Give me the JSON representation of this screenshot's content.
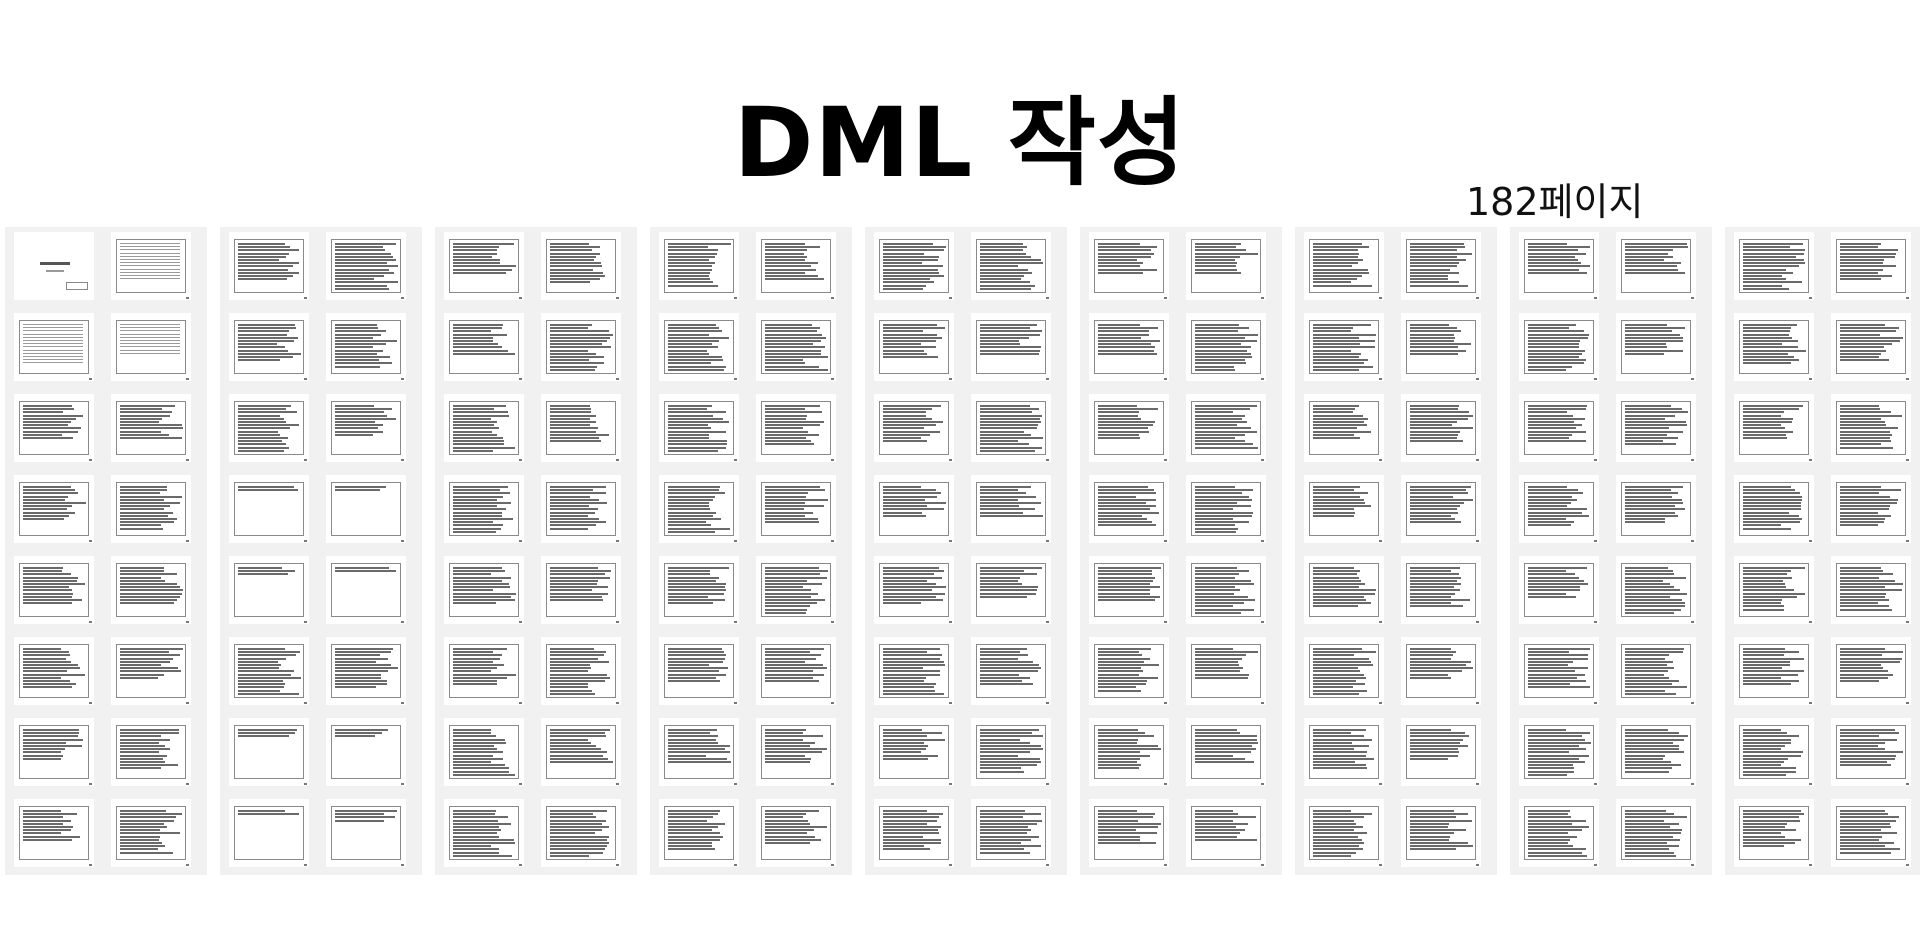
{
  "slide": {
    "title": "DML 작성",
    "page_count": "182페이지"
  },
  "thumbnail_grid": {
    "columns": 9,
    "rows": 8,
    "thumbs_per_row": 2,
    "description_style": "document-page-thumbnails"
  }
}
